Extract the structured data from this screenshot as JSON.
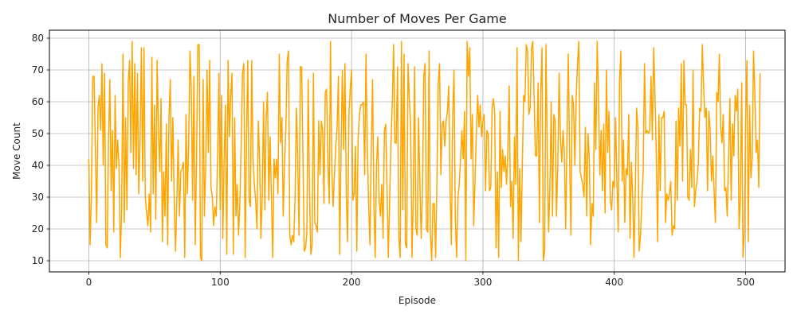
{
  "chart_data": {
    "type": "line",
    "title": "Number of Moves Per Game",
    "xlabel": "Episode",
    "ylabel": "Move Count",
    "xlim": [
      -30,
      530
    ],
    "ylim": [
      6.5,
      82.5
    ],
    "xticks": [
      0,
      100,
      200,
      300,
      400,
      500
    ],
    "yticks": [
      10,
      20,
      30,
      40,
      50,
      60,
      70,
      80
    ],
    "grid": true,
    "line_color": "#ffa500",
    "series": [
      {
        "values": [
          42,
          15,
          32,
          68,
          68,
          45,
          22,
          58,
          62,
          51,
          72,
          40,
          69,
          15,
          14,
          48,
          67,
          32,
          51,
          19,
          62,
          39,
          48,
          40,
          11,
          26,
          75,
          22,
          55,
          26,
          66,
          73,
          44,
          79,
          39,
          72,
          37,
          69,
          31,
          48,
          77,
          35,
          77,
          30,
          25,
          21,
          31,
          19,
          74,
          31,
          59,
          23,
          73,
          52,
          38,
          61,
          16,
          38,
          24,
          53,
          15,
          55,
          67,
          35,
          55,
          29,
          13,
          29,
          48,
          24,
          38,
          39,
          41,
          11,
          56,
          31,
          46,
          76,
          64,
          29,
          68,
          15,
          42,
          78,
          78,
          11,
          10,
          67,
          24,
          40,
          70,
          44,
          73,
          33,
          30,
          21,
          27,
          24,
          42,
          69,
          26,
          62,
          17,
          41,
          59,
          12,
          73,
          49,
          62,
          69,
          12,
          55,
          24,
          34,
          18,
          28,
          47,
          69,
          72,
          11,
          47,
          73,
          29,
          27,
          73,
          42,
          34,
          29,
          20,
          54,
          42,
          17,
          30,
          60,
          26,
          55,
          63,
          29,
          49,
          30,
          11,
          42,
          36,
          42,
          31,
          75,
          47,
          55,
          24,
          40,
          52,
          73,
          76,
          18,
          15,
          18,
          16,
          30,
          58,
          44,
          18,
          71,
          71,
          43,
          13,
          14,
          19,
          67,
          31,
          12,
          15,
          69,
          22,
          21,
          19,
          54,
          37,
          54,
          51,
          28,
          63,
          64,
          41,
          28,
          79,
          38,
          27,
          37,
          46,
          52,
          68,
          12,
          44,
          70,
          45,
          72,
          30,
          16,
          56,
          64,
          70,
          29,
          31,
          46,
          13,
          48,
          56,
          59,
          59,
          60,
          37,
          75,
          45,
          28,
          15,
          44,
          67,
          28,
          11,
          40,
          49,
          29,
          24,
          34,
          17,
          51,
          53,
          33,
          11,
          29,
          47,
          59,
          78,
          47,
          47,
          71,
          17,
          11,
          79,
          26,
          75,
          15,
          14,
          72,
          61,
          53,
          11,
          30,
          71,
          20,
          18,
          55,
          35,
          17,
          32,
          68,
          72,
          20,
          19,
          76,
          19,
          10,
          28,
          28,
          11,
          35,
          66,
          72,
          37,
          53,
          54,
          46,
          54,
          57,
          65,
          32,
          15,
          55,
          70,
          23,
          11,
          30,
          34,
          42,
          51,
          42,
          57,
          10,
          79,
          68,
          77,
          42,
          56,
          21,
          35,
          50,
          62,
          52,
          59,
          49,
          54,
          56,
          32,
          51,
          50,
          32,
          33,
          58,
          61,
          56,
          14,
          38,
          11,
          57,
          33,
          45,
          38,
          43,
          34,
          44,
          65,
          27,
          35,
          17,
          49,
          34,
          77,
          10,
          39,
          16,
          40,
          62,
          60,
          78,
          76,
          56,
          58,
          77,
          79,
          61,
          43,
          43,
          66,
          22,
          63,
          77,
          10,
          13,
          78,
          44,
          19,
          33,
          60,
          24,
          56,
          54,
          24,
          40,
          69,
          49,
          41,
          51,
          44,
          20,
          48,
          75,
          42,
          18,
          62,
          59,
          40,
          61,
          72,
          79,
          38,
          36,
          34,
          30,
          52,
          24,
          50,
          42,
          15,
          28,
          24,
          66,
          45,
          79,
          62,
          37,
          51,
          32,
          53,
          25,
          70,
          44,
          57,
          29,
          26,
          35,
          33,
          55,
          35,
          19,
          66,
          76,
          35,
          48,
          22,
          39,
          37,
          56,
          17,
          41,
          31,
          11,
          32,
          58,
          52,
          13,
          18,
          29,
          38,
          72,
          50,
          51,
          50,
          51,
          68,
          48,
          77,
          62,
          43,
          16,
          56,
          32,
          55,
          55,
          57,
          22,
          31,
          29,
          31,
          35,
          18,
          21,
          20,
          54,
          29,
          58,
          46,
          72,
          35,
          73,
          59,
          59,
          30,
          29,
          45,
          33,
          70,
          27,
          32,
          35,
          41,
          58,
          57,
          78,
          65,
          55,
          58,
          32,
          57,
          51,
          35,
          43,
          32,
          22,
          63,
          60,
          75,
          52,
          47,
          56,
          32,
          33,
          24,
          42,
          61,
          29,
          53,
          43,
          62,
          57,
          64,
          20,
          30,
          66,
          11,
          19,
          54,
          73,
          16,
          59,
          36,
          42,
          76,
          63,
          44,
          48,
          33,
          69
        ]
      }
    ]
  }
}
